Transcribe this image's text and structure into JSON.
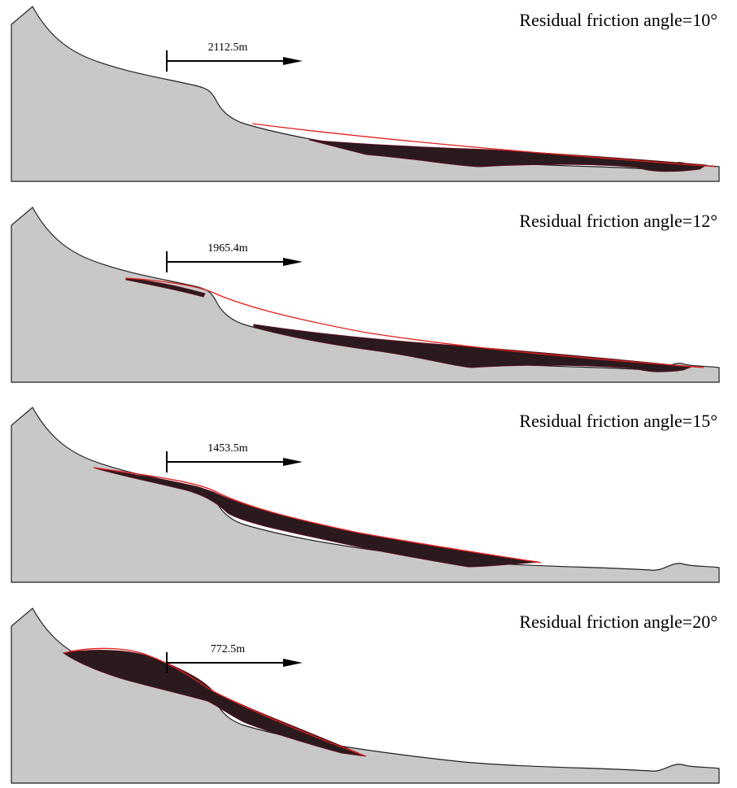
{
  "panels": [
    {
      "title": "Residual friction angle=10°",
      "distance": "2112.5m"
    },
    {
      "title": "Residual friction angle=12°",
      "distance": "1965.4m"
    },
    {
      "title": "Residual friction angle=15°",
      "distance": "1453.5m"
    },
    {
      "title": "Residual friction angle=20°",
      "distance": "772.5m"
    }
  ]
}
